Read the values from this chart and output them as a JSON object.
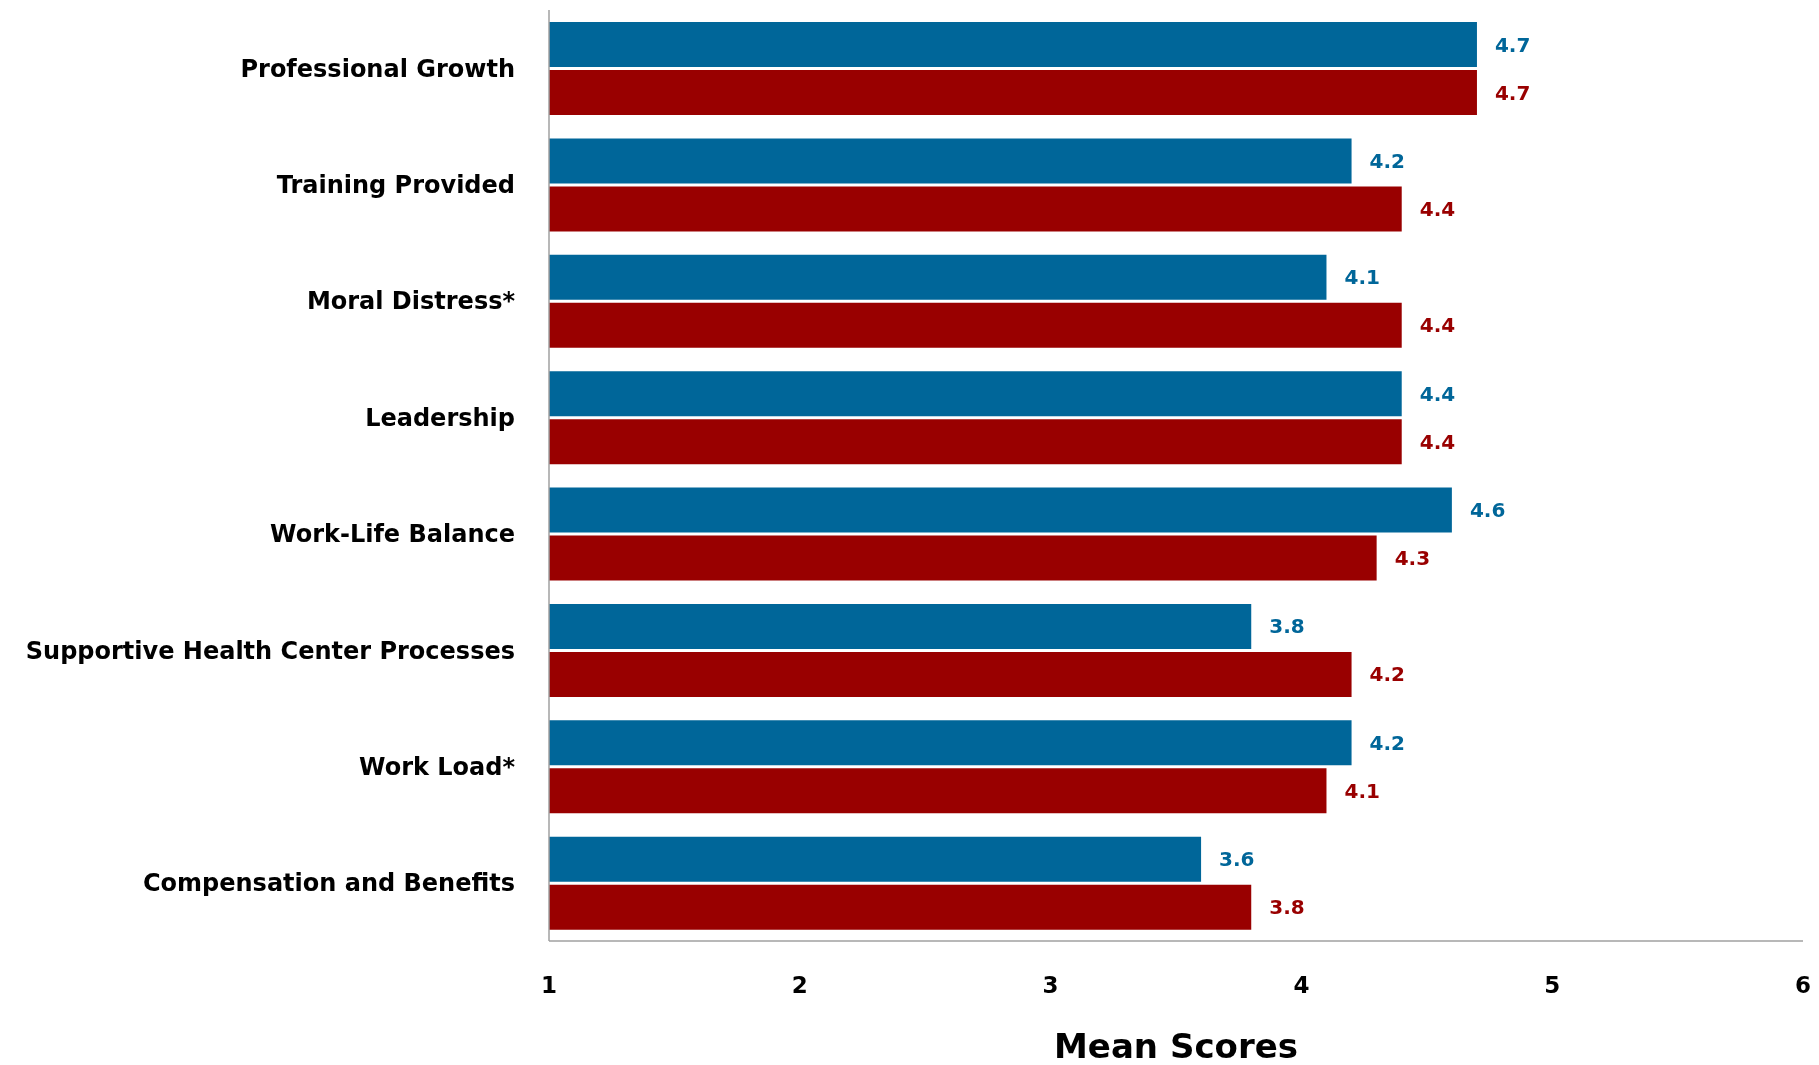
{
  "chart_data": {
    "type": "bar",
    "orientation": "horizontal",
    "xlabel": "Mean Scores",
    "categories": [
      "Professional Growth",
      "Training Provided",
      "Moral Distress*",
      "Leadership",
      "Work-Life Balance",
      "Supportive Health Center Processes",
      "Work Load*",
      "Compensation and Benefits"
    ],
    "series": [
      {
        "color": "#006699",
        "values": [
          4.7,
          4.2,
          4.1,
          4.4,
          4.6,
          3.8,
          4.2,
          3.6
        ]
      },
      {
        "color": "#990000",
        "values": [
          4.7,
          4.4,
          4.4,
          4.4,
          4.3,
          4.2,
          4.1,
          3.8
        ]
      }
    ],
    "xlim": [
      1,
      6
    ],
    "xticks": [
      1,
      2,
      3,
      4,
      5,
      6
    ],
    "data_labels": true
  }
}
